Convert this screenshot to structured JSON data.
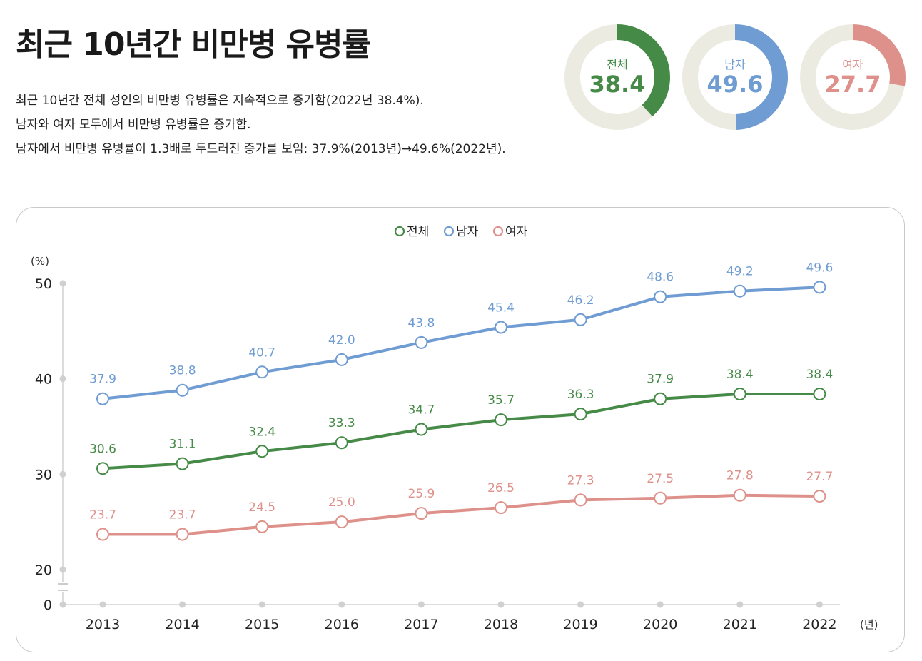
{
  "title": "최근 10년간 비만병 유병률",
  "description": [
    "최근 10년간 전체 성인의 비만병 유병률은 지속적으로 증가함(2022년 38.4%).",
    "남자와 여자 모두에서 비만병 유병률은 증가함.",
    "남자에서 비만병 유병률이 1.3배로 두드러진 증가를 보임: 37.9%(2013년)→49.6%(2022년)."
  ],
  "donuts": [
    {
      "label": "전체",
      "value": "38.4",
      "fraction": 0.384,
      "color": "#468a47"
    },
    {
      "label": "남자",
      "value": "49.6",
      "fraction": 0.496,
      "color": "#6f9cd2"
    },
    {
      "label": "여자",
      "value": "27.7",
      "fraction": 0.277,
      "color": "#de918b"
    }
  ],
  "colors": {
    "total": "#468a47",
    "male": "#6f9cd2",
    "female": "#de918b",
    "track": "#ecebe1",
    "axis": "#d0d0d0"
  },
  "chart_data": {
    "type": "line",
    "ylabel": "(%)",
    "xlabel": "(년)",
    "x": [
      "2013",
      "2014",
      "2015",
      "2016",
      "2017",
      "2018",
      "2019",
      "2020",
      "2021",
      "2022"
    ],
    "yticks": [
      0,
      20,
      30,
      40,
      50
    ],
    "ylim": [
      20,
      50
    ],
    "axis_break": true,
    "legend_position": "top-center",
    "series": [
      {
        "name": "전체",
        "color": "#468a47",
        "values": [
          30.6,
          31.1,
          32.4,
          33.3,
          34.7,
          35.7,
          36.3,
          37.9,
          38.4,
          38.4
        ]
      },
      {
        "name": "남자",
        "color": "#6f9cd2",
        "values": [
          37.9,
          38.8,
          40.7,
          42.0,
          43.8,
          45.4,
          46.2,
          48.6,
          49.2,
          49.6
        ]
      },
      {
        "name": "여자",
        "color": "#de918b",
        "values": [
          23.7,
          23.7,
          24.5,
          25.0,
          25.9,
          26.5,
          27.3,
          27.5,
          27.8,
          27.7
        ]
      }
    ]
  }
}
